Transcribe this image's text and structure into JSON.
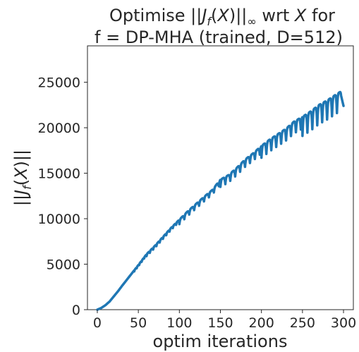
{
  "chart_data": {
    "type": "line",
    "title_line1_parts": [
      "Optimise ||",
      "J",
      "f",
      "(",
      "X",
      ")||",
      "∞",
      " wrt ",
      "X",
      " for"
    ],
    "title_line2": "f = DP-MHA (trained, D=512)",
    "xlabel": "optim iterations",
    "ylabel_parts": [
      "||",
      "J",
      "f",
      "(",
      "X",
      ")||"
    ],
    "xlim": [
      -12,
      312
    ],
    "ylim": [
      0,
      29000
    ],
    "xticks": [
      0,
      50,
      100,
      150,
      200,
      250,
      300
    ],
    "yticks": [
      0,
      5000,
      10000,
      15000,
      20000,
      25000
    ],
    "grid": false,
    "series": [
      {
        "color": "#1f77b4",
        "anchors_x": [
          0,
          5,
          10,
          15,
          20,
          25,
          30,
          40,
          50,
          60,
          70,
          80,
          90,
          100,
          110,
          120,
          130,
          140,
          150,
          160,
          170,
          180,
          190,
          200,
          210,
          220,
          230,
          240,
          250,
          260,
          270,
          280,
          290,
          297
        ],
        "anchors_y": [
          0,
          200,
          500,
          900,
          1450,
          2000,
          2600,
          3750,
          4900,
          6100,
          7000,
          8000,
          9000,
          9900,
          10800,
          11600,
          12400,
          13150,
          14300,
          14800,
          15600,
          16500,
          17200,
          18000,
          18700,
          19300,
          19900,
          20700,
          21200,
          21800,
          22500,
          23000,
          23600,
          24000
        ],
        "oscillations": [
          {
            "from": 45,
            "to": 60,
            "period": 3,
            "depth": 120
          },
          {
            "from": 60,
            "to": 100,
            "period": 4,
            "depth": 220
          },
          {
            "from": 100,
            "to": 150,
            "period": 6,
            "depth": 500
          },
          {
            "from": 150,
            "to": 200,
            "period": 6,
            "depth": 800
          },
          {
            "from": 200,
            "to": 250,
            "period": 6,
            "depth": 1300
          },
          {
            "from": 250,
            "to": 298,
            "period": 6,
            "depth": 2100
          }
        ],
        "end_x": 300,
        "end_y": 22400
      }
    ]
  }
}
